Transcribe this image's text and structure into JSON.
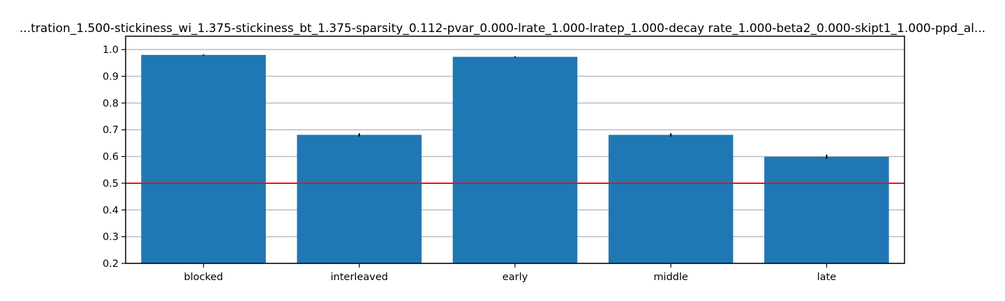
{
  "chart_data": {
    "type": "bar",
    "title": "...tration_1.500-stickiness_wi_1.375-stickiness_bt_1.375-sparsity_0.112-pvar_0.000-lrate_1.000-lratep_1.000-decay rate_1.000-beta2_0.000-skipt1_1.000-ppd_al...",
    "xlabel": "",
    "ylabel": "",
    "categories": [
      "blocked",
      "interleaved",
      "early",
      "middle",
      "late"
    ],
    "values": [
      0.98,
      0.681,
      0.973,
      0.681,
      0.599
    ],
    "errors": [
      0.002,
      0.006,
      0.002,
      0.006,
      0.008
    ],
    "ylim": [
      0.2,
      1.05
    ],
    "yticks": [
      0.2,
      0.3,
      0.4,
      0.5,
      0.6,
      0.7,
      0.8,
      0.9,
      1.0
    ],
    "ytick_labels": [
      "0.2",
      "0.3",
      "0.4",
      "0.5",
      "0.6",
      "0.7",
      "0.8",
      "0.9",
      "1.0"
    ],
    "reference_line": 0.5,
    "grid": "horizontal",
    "colors": {
      "bar": "#1f77b4",
      "reference_line": "#e3161a",
      "grid": "#bdbdbd",
      "error": "#000000"
    }
  }
}
